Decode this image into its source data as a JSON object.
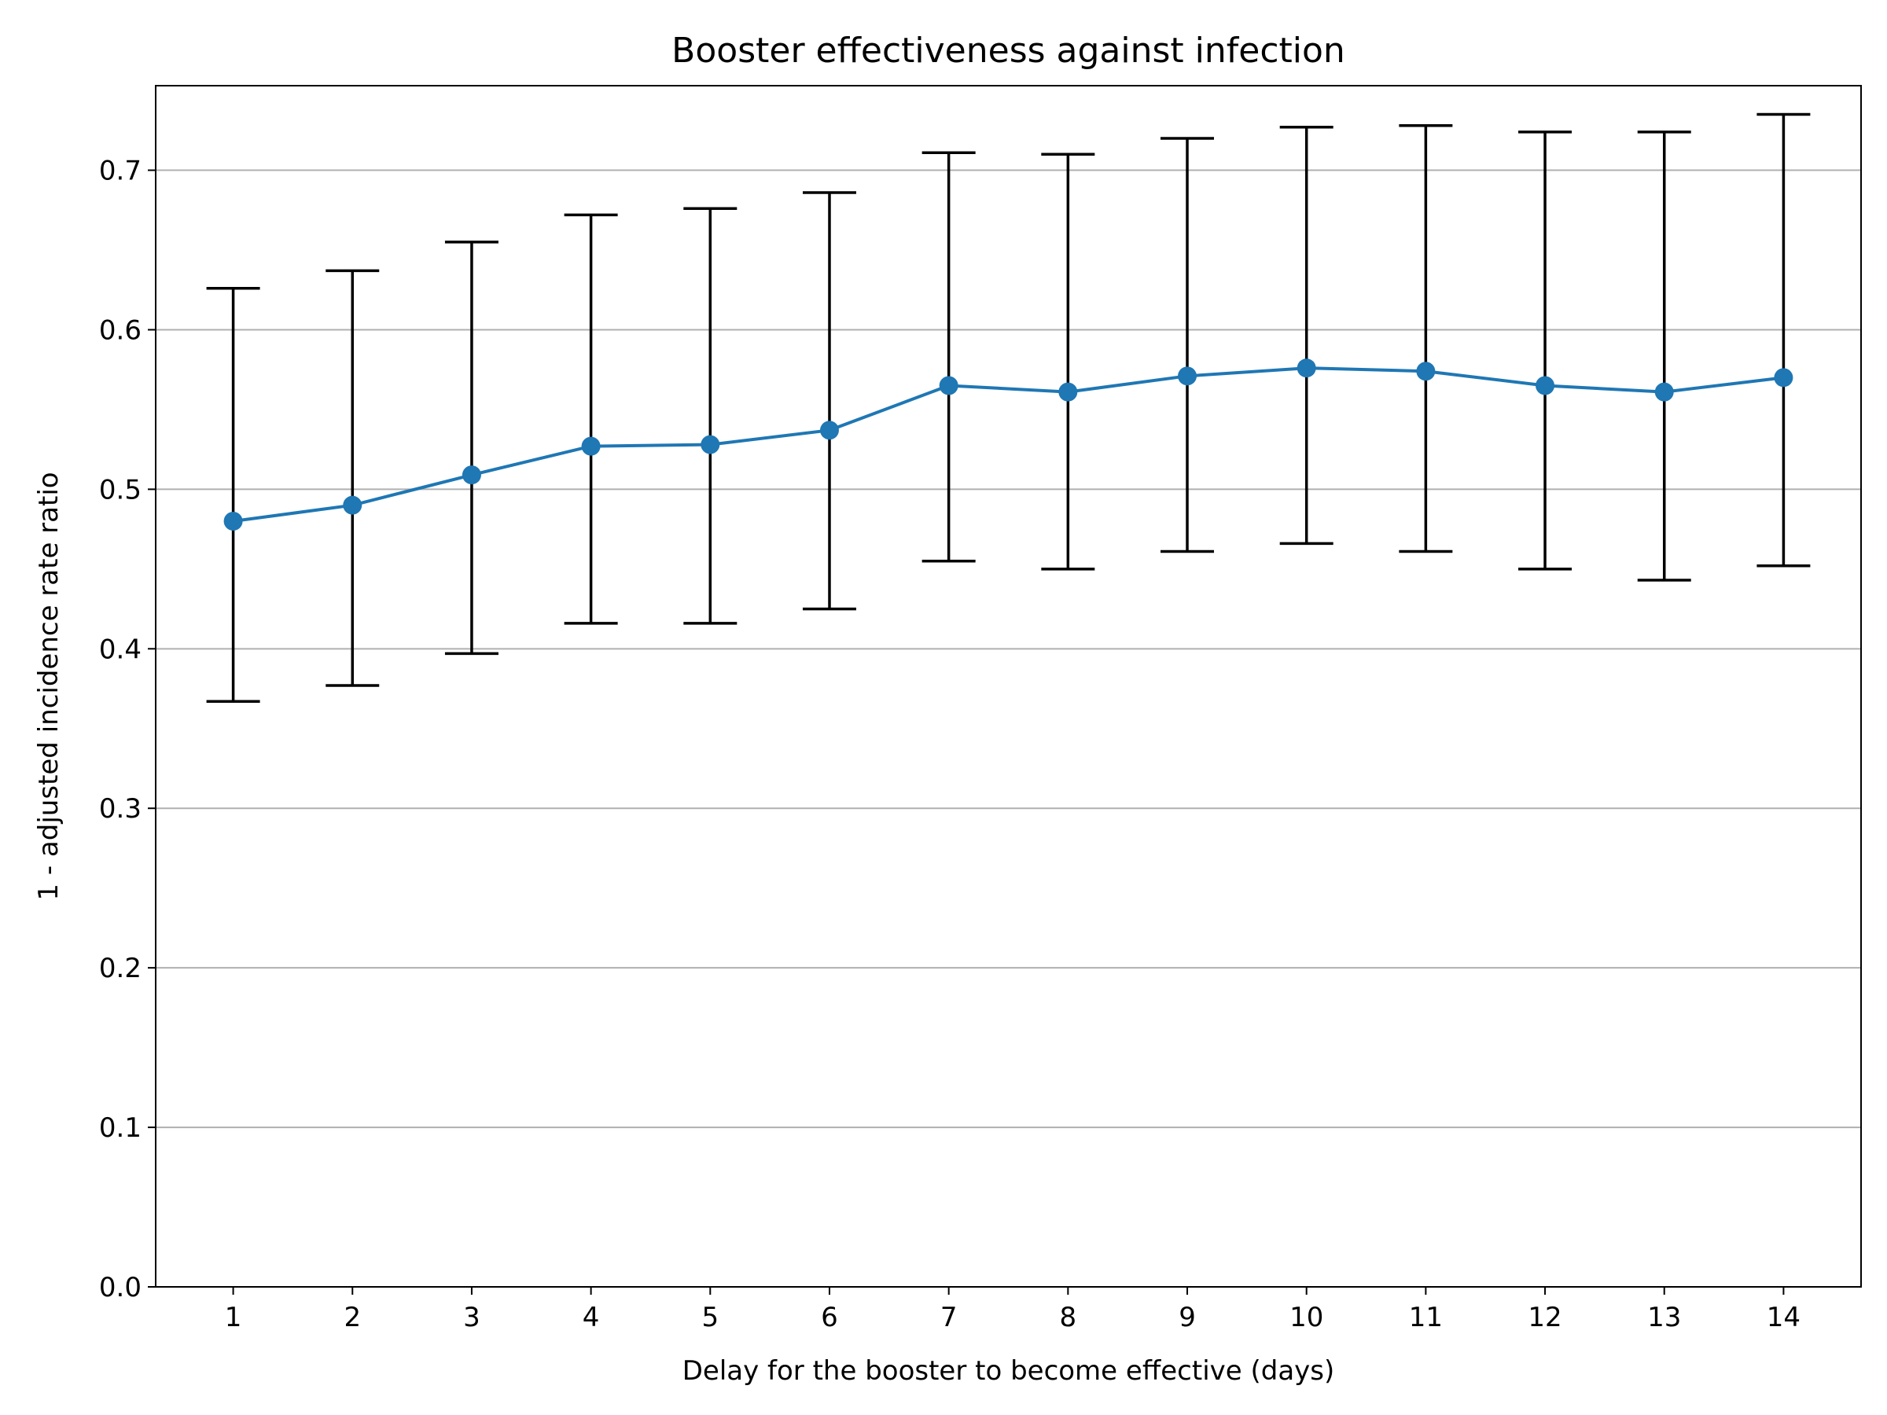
{
  "chart_data": {
    "type": "line",
    "title": "Booster effectiveness against infection",
    "xlabel": "Delay for the booster to become effective (days)",
    "ylabel": "1 - adjusted incidence rate ratio",
    "x": [
      1,
      2,
      3,
      4,
      5,
      6,
      7,
      8,
      9,
      10,
      11,
      12,
      13,
      14
    ],
    "xlim": [
      0.35,
      14.65
    ],
    "ylim": [
      0.0,
      0.753
    ],
    "yticks": [
      0.0,
      0.1,
      0.2,
      0.3,
      0.4,
      0.5,
      0.6,
      0.7
    ],
    "ytick_labels": [
      "0.0",
      "0.1",
      "0.2",
      "0.3",
      "0.4",
      "0.5",
      "0.6",
      "0.7"
    ],
    "xtick_labels": [
      "1",
      "2",
      "3",
      "4",
      "5",
      "6",
      "7",
      "8",
      "9",
      "10",
      "11",
      "12",
      "13",
      "14"
    ],
    "grid": "horizontal",
    "series": [
      {
        "color": "#1f77b4",
        "values": [
          0.48,
          0.49,
          0.509,
          0.527,
          0.528,
          0.537,
          0.565,
          0.561,
          0.571,
          0.576,
          0.574,
          0.565,
          0.561,
          0.57
        ],
        "error_lower": [
          0.367,
          0.377,
          0.397,
          0.416,
          0.416,
          0.425,
          0.455,
          0.45,
          0.461,
          0.466,
          0.461,
          0.45,
          0.443,
          0.452
        ],
        "error_upper": [
          0.626,
          0.637,
          0.655,
          0.672,
          0.676,
          0.686,
          0.711,
          0.71,
          0.72,
          0.727,
          0.728,
          0.724,
          0.724,
          0.735
        ],
        "error_color": "#000000"
      }
    ]
  }
}
